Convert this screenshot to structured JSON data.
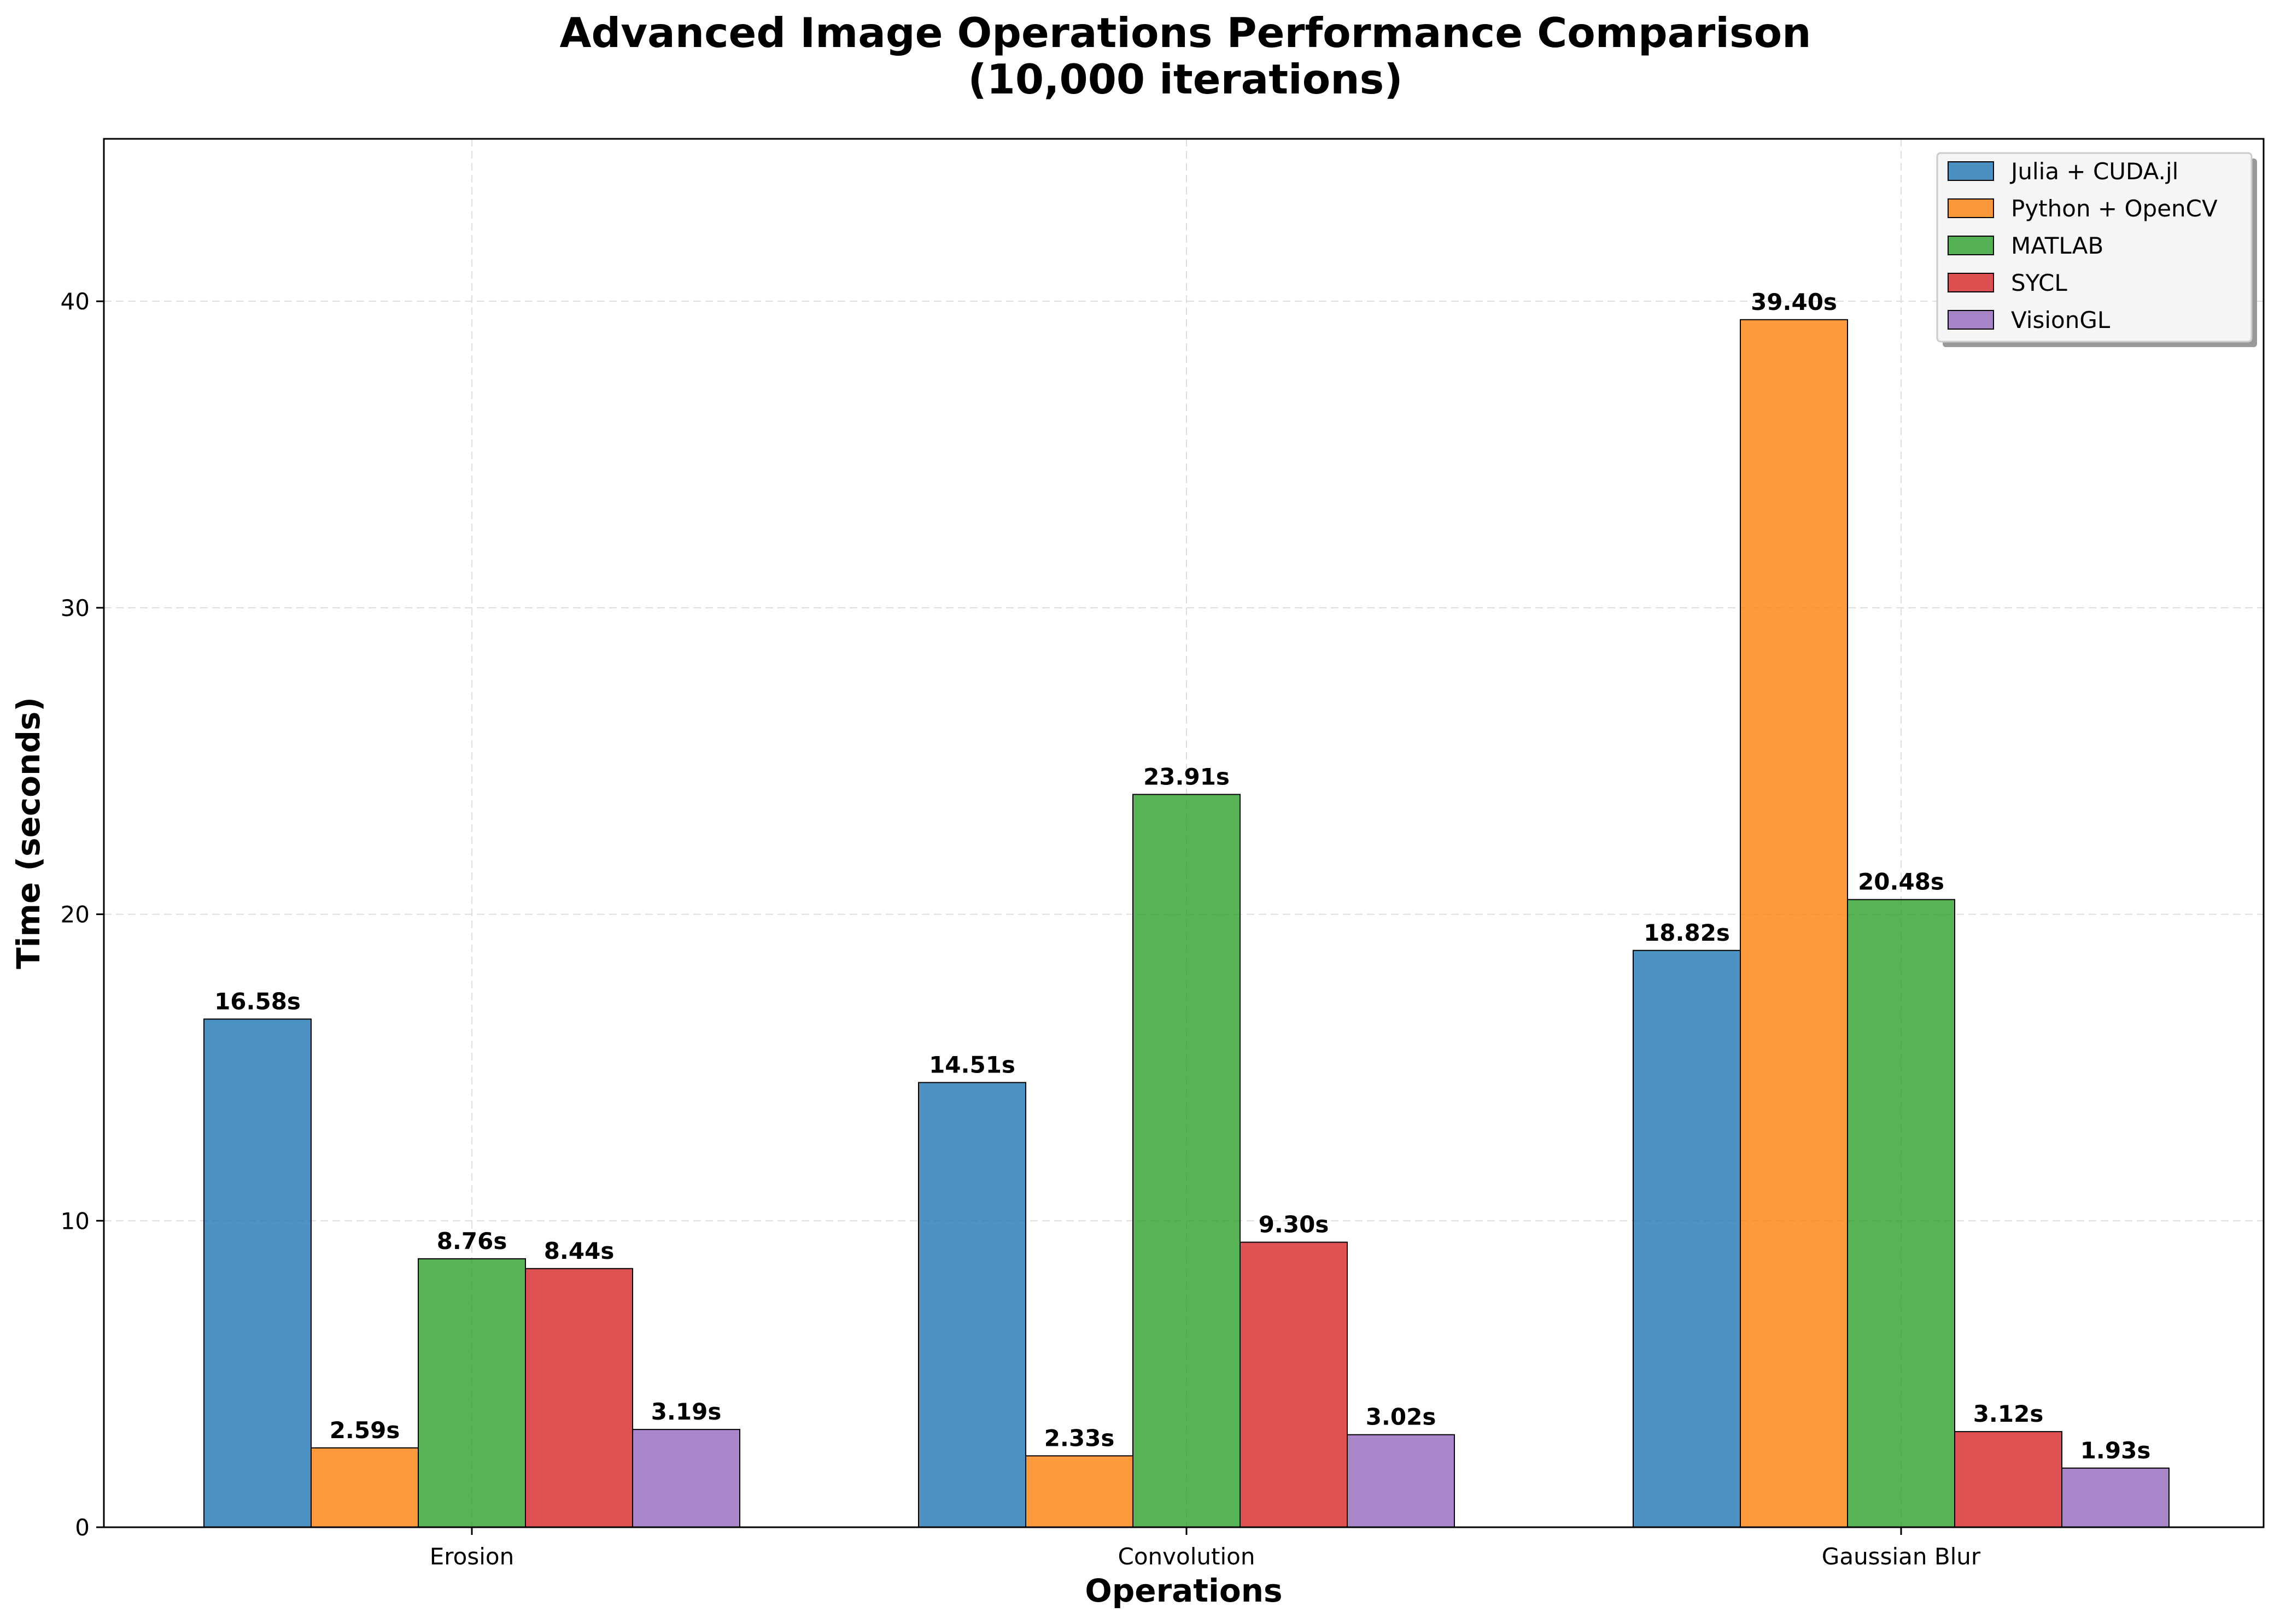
{
  "chart_data": {
    "type": "bar",
    "title": "Advanced Image Operations Performance Comparison",
    "subtitle": "(10,000 iterations)",
    "xlabel": "Operations",
    "ylabel": "Time (seconds)",
    "categories": [
      "Erosion",
      "Convolution",
      "Gaussian Blur"
    ],
    "series": [
      {
        "name": "Julia + CUDA.jl",
        "color": "#1f77b4",
        "values": [
          16.58,
          14.51,
          18.82
        ],
        "labels": [
          "16.58s",
          "14.51s",
          "18.82s"
        ]
      },
      {
        "name": "Python + OpenCV",
        "color": "#ff7f0e",
        "values": [
          2.59,
          2.33,
          39.4
        ],
        "labels": [
          "2.59s",
          "2.33s",
          "39.40s"
        ]
      },
      {
        "name": "MATLAB",
        "color": "#2ca02c",
        "values": [
          8.76,
          23.91,
          20.48
        ],
        "labels": [
          "8.76s",
          "23.91s",
          "20.48s"
        ]
      },
      {
        "name": "SYCL",
        "color": "#d62728",
        "values": [
          8.44,
          9.3,
          3.12
        ],
        "labels": [
          "8.44s",
          "9.30s",
          "3.12s"
        ]
      },
      {
        "name": "VisionGL",
        "color": "#9467bd",
        "values": [
          3.19,
          3.02,
          1.93
        ],
        "labels": [
          "3.19s",
          "3.02s",
          "1.93s"
        ]
      }
    ],
    "yticks": [
      0,
      10,
      20,
      30,
      40
    ],
    "ytick_labels": [
      "0",
      "10",
      "20",
      "30",
      "40"
    ],
    "ylim": [
      0,
      45.3
    ],
    "grid": true,
    "legend_position": "top-right"
  }
}
